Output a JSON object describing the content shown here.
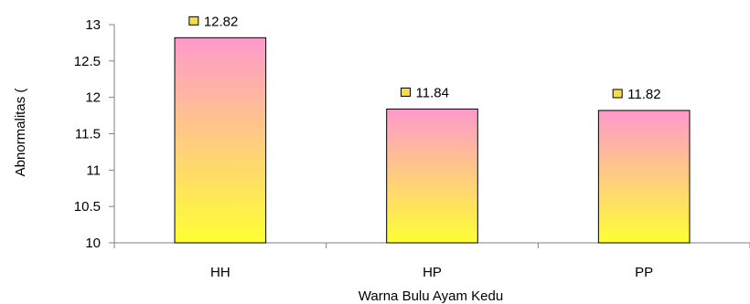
{
  "chart_data": {
    "type": "bar",
    "categories": [
      "HH",
      "HP",
      "PP"
    ],
    "values": [
      12.82,
      11.84,
      11.82
    ],
    "data_labels": [
      "12.82",
      "11.84",
      "11.82"
    ],
    "title": "",
    "xlabel": "Warna Bulu Ayam Kedu",
    "ylabel": "Abnormalitas (",
    "ylim": [
      10,
      13
    ],
    "yticks": [
      "10",
      "10.5",
      "11",
      "11.5",
      "12",
      "12.5",
      "13"
    ],
    "grid": false,
    "legend": "none",
    "colors": {
      "bar_top": "#ff99cc",
      "bar_bottom": "#ffff33",
      "bar_stroke": "#000000",
      "axis": "#808080",
      "marker": "#f5dd4a"
    }
  }
}
